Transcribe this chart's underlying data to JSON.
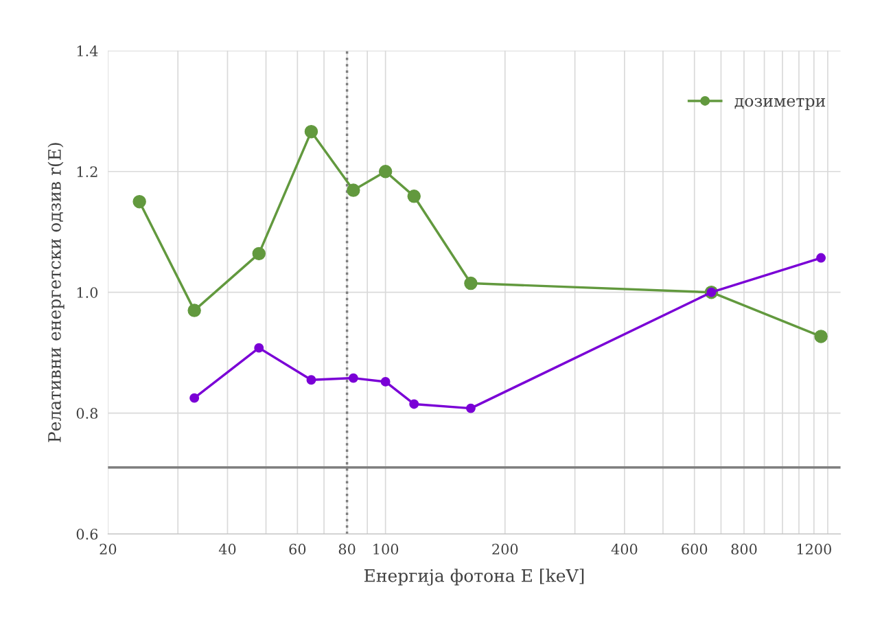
{
  "chart_data": {
    "type": "line",
    "xlabel": "Енергија фотона E [keV]",
    "ylabel": "Релативни енергетски одзив r(E)",
    "log": "x",
    "xlim": [
      20,
      1400
    ],
    "ylim": [
      0.6,
      1.4
    ],
    "xticks": [
      20,
      {
        "value": 30,
        "label": null
      },
      40,
      {
        "value": 50,
        "label": null
      },
      60,
      {
        "value": 70,
        "label": null
      },
      80,
      {
        "value": 90,
        "label": null
      },
      100,
      200,
      {
        "value": 300,
        "label": null
      },
      400,
      {
        "value": 500,
        "label": null
      },
      600,
      {
        "value": 700,
        "label": null
      },
      800,
      {
        "value": 900,
        "label": null
      },
      {
        "value": 1000,
        "label": null
      },
      {
        "value": 1100,
        "label": null
      },
      1200,
      {
        "value": 1300,
        "label": null
      }
    ],
    "yticks": [
      0.6,
      0.8,
      {
        "value": 1,
        "label": "1.0"
      },
      1.2,
      1.4
    ],
    "grid": true,
    "legend": "top right",
    "marker": "circle",
    "line_style": "solid",
    "series": [
      {
        "name": "дозиметри",
        "color": "#62993e",
        "x": [
          24,
          33,
          48,
          65,
          83,
          100,
          118,
          164,
          662,
          1250
        ],
        "values": [
          1.15,
          0.97,
          1.064,
          1.266,
          1.169,
          1.2,
          1.159,
          1.015,
          1.0,
          0.927
        ]
      },
      {
        "color": "#7a00d6",
        "x": [
          33,
          48,
          65,
          83,
          100,
          118,
          164,
          662,
          1250
        ],
        "values": [
          0.825,
          0.908,
          0.855,
          0.858,
          0.852,
          0.815,
          0.808,
          1.0,
          1.057
        ]
      }
    ],
    "ref_lines": [
      {
        "axis": "y",
        "value": 0.71,
        "color": "#7f7f7f",
        "line_style": "solid"
      },
      {
        "axis": "x",
        "value": 80,
        "color": "#7f7f7f",
        "line_style": "dotted"
      }
    ]
  }
}
